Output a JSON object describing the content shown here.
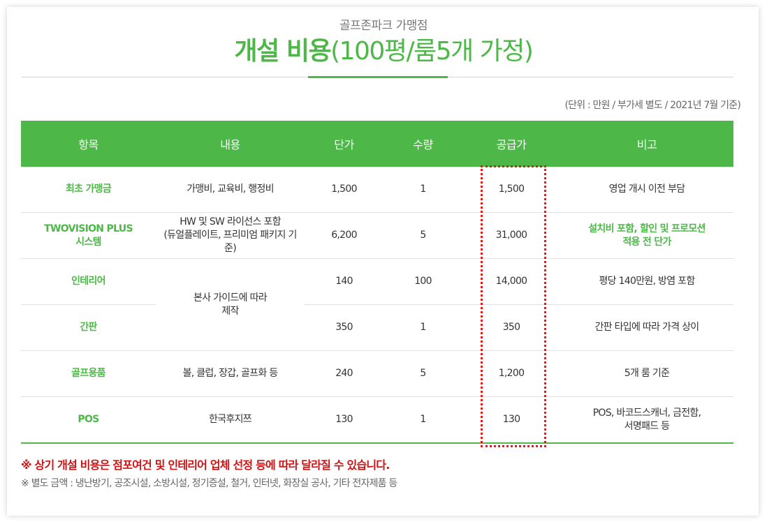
{
  "header": {
    "subtitle": "골프존파크 가맹점",
    "title_bold": "개설 비용",
    "title_rest": "(100평/룸5개 가정)"
  },
  "unit_note": "(단위 : 만원 / 부가세 별도 / 2021년 7월 기준)",
  "table": {
    "headers": [
      "항목",
      "내용",
      "단가",
      "수량",
      "공급가",
      "비고"
    ],
    "rows": [
      {
        "item": "최초 가맹금",
        "content": "가맹비, 교육비, 행정비",
        "price": "1,500",
        "qty": "1",
        "supply": "1,500",
        "note": "영업 개시 이전 부담"
      },
      {
        "item_line1": "TWOVISION PLUS",
        "item_line2": "시스템",
        "content_line1": "HW 및 SW 라이선스 포함",
        "content_line2": "(듀얼플레이트, 프리미엄 패키지 기준)",
        "price": "6,200",
        "qty": "5",
        "supply": "31,000",
        "note_line1": "설치비 포함, 할인 및 프로모션",
        "note_line2": "적용 전 단가"
      },
      {
        "item": "인테리어",
        "content_line1": "본사 가이드에 따라",
        "content_line2": "제작",
        "price": "140",
        "qty": "100",
        "supply": "14,000",
        "note": "평당 140만원, 방염 포함"
      },
      {
        "item": "간판",
        "price": "350",
        "qty": "1",
        "supply": "350",
        "note": "간판 타입에 따라 가격 상이"
      },
      {
        "item": "골프용품",
        "content": "볼, 클럽, 장갑, 골프화 등",
        "price": "240",
        "qty": "5",
        "supply": "1,200",
        "note": "5개 룸 기준"
      },
      {
        "item": "POS",
        "content": "한국후지쯔",
        "price": "130",
        "qty": "1",
        "supply": "130",
        "note_line1": "POS, 바코드스캐너, 금전함,",
        "note_line2": "서명패드 등"
      }
    ]
  },
  "footnotes": {
    "primary": "※ 상기 개설 비용은 점포여건 및 인테리어 업체 선정 등에 따라 달라질 수 있습니다.",
    "secondary": "※ 별도 금액 : 냉난방기, 공조시설, 소방시설, 정기증설, 철거, 인터넷, 화장실 공사, 기타 전자제품 등"
  },
  "colors": {
    "accent": "#4db848",
    "highlight": "#d62020",
    "warning_text": "#cc1414"
  }
}
